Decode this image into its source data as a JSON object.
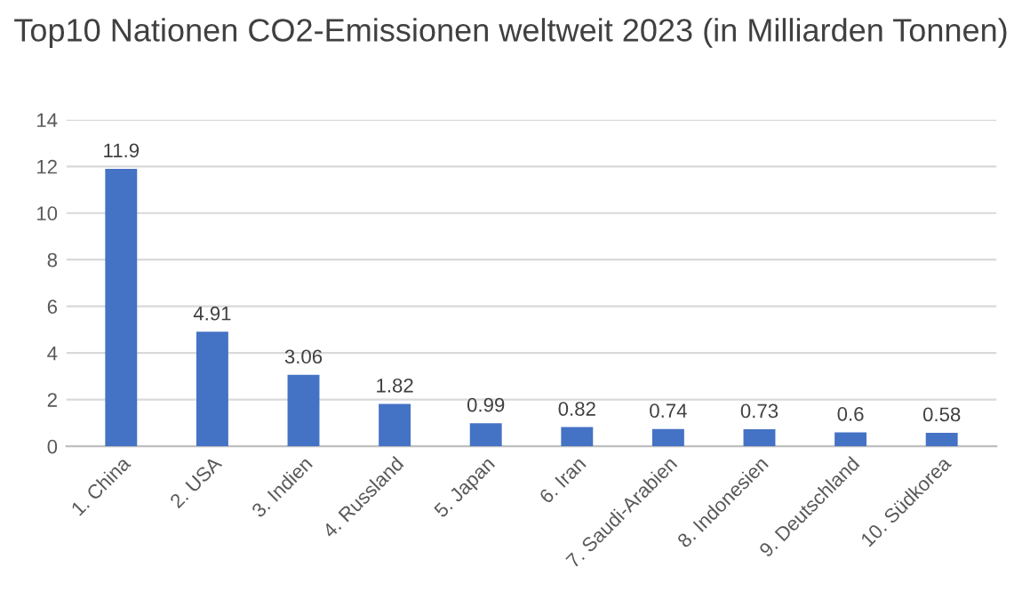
{
  "chart_data": {
    "type": "bar",
    "title": "Top10 Nationen CO2-Emissionen weltweit 2023 (in Milliarden Tonnen)",
    "categories": [
      "1. China",
      "2. USA",
      "3. Indien",
      "4. Russland",
      "5. Japan",
      "6. Iran",
      "7. Saudi-Arabien",
      "8. Indonesien",
      "9. Deutschland",
      "10. Südkorea"
    ],
    "values": [
      11.9,
      4.91,
      3.06,
      1.82,
      0.99,
      0.82,
      0.74,
      0.73,
      0.6,
      0.58
    ],
    "color": "#4472c4",
    "ylim": [
      0,
      14
    ],
    "yticks": [
      0,
      2,
      4,
      6,
      8,
      10,
      12,
      14
    ],
    "grid": "y",
    "data_labels": true
  }
}
